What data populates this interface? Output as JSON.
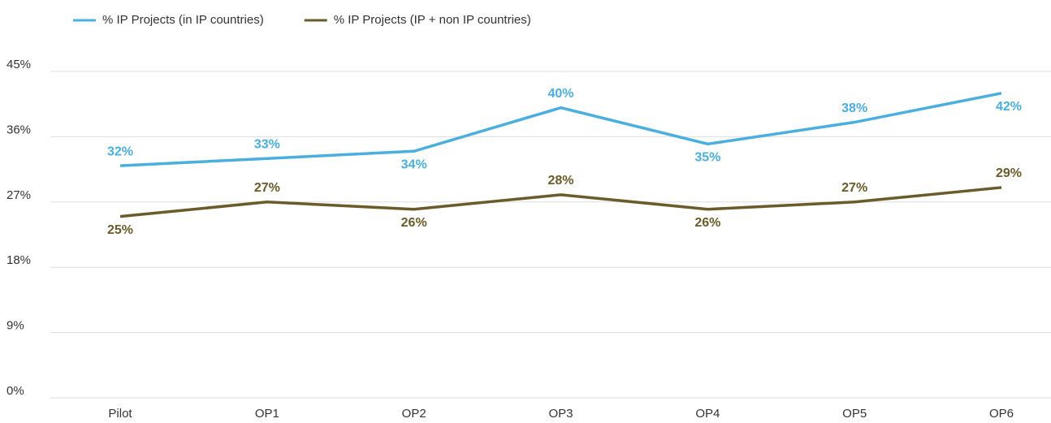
{
  "chart_data": {
    "type": "line",
    "categories": [
      "Pilot",
      "OP1",
      "OP2",
      "OP3",
      "OP4",
      "OP5",
      "OP6"
    ],
    "series": [
      {
        "name": "% IP Projects (in IP countries)",
        "color": "#4aaee0",
        "values": [
          32,
          33,
          34,
          40,
          35,
          38,
          42
        ],
        "value_labels": [
          "32%",
          "33%",
          "34%",
          "40%",
          "35%",
          "38%",
          "42%"
        ]
      },
      {
        "name": "% IP Projects (IP + non IP countries)",
        "color": "#6b5a2a",
        "values": [
          25,
          27,
          26,
          28,
          26,
          27,
          29
        ],
        "value_labels": [
          "25%",
          "27%",
          "26%",
          "28%",
          "26%",
          "27%",
          "29%"
        ]
      }
    ],
    "ylim": [
      0,
      45
    ],
    "yticks": [
      {
        "value": 0,
        "label": "0%"
      },
      {
        "value": 9,
        "label": "9%"
      },
      {
        "value": 18,
        "label": "18%"
      },
      {
        "value": 27,
        "label": "27%"
      },
      {
        "value": 36,
        "label": "36%"
      },
      {
        "value": 45,
        "label": "45%"
      }
    ],
    "grid": true,
    "legend": "top-left"
  }
}
